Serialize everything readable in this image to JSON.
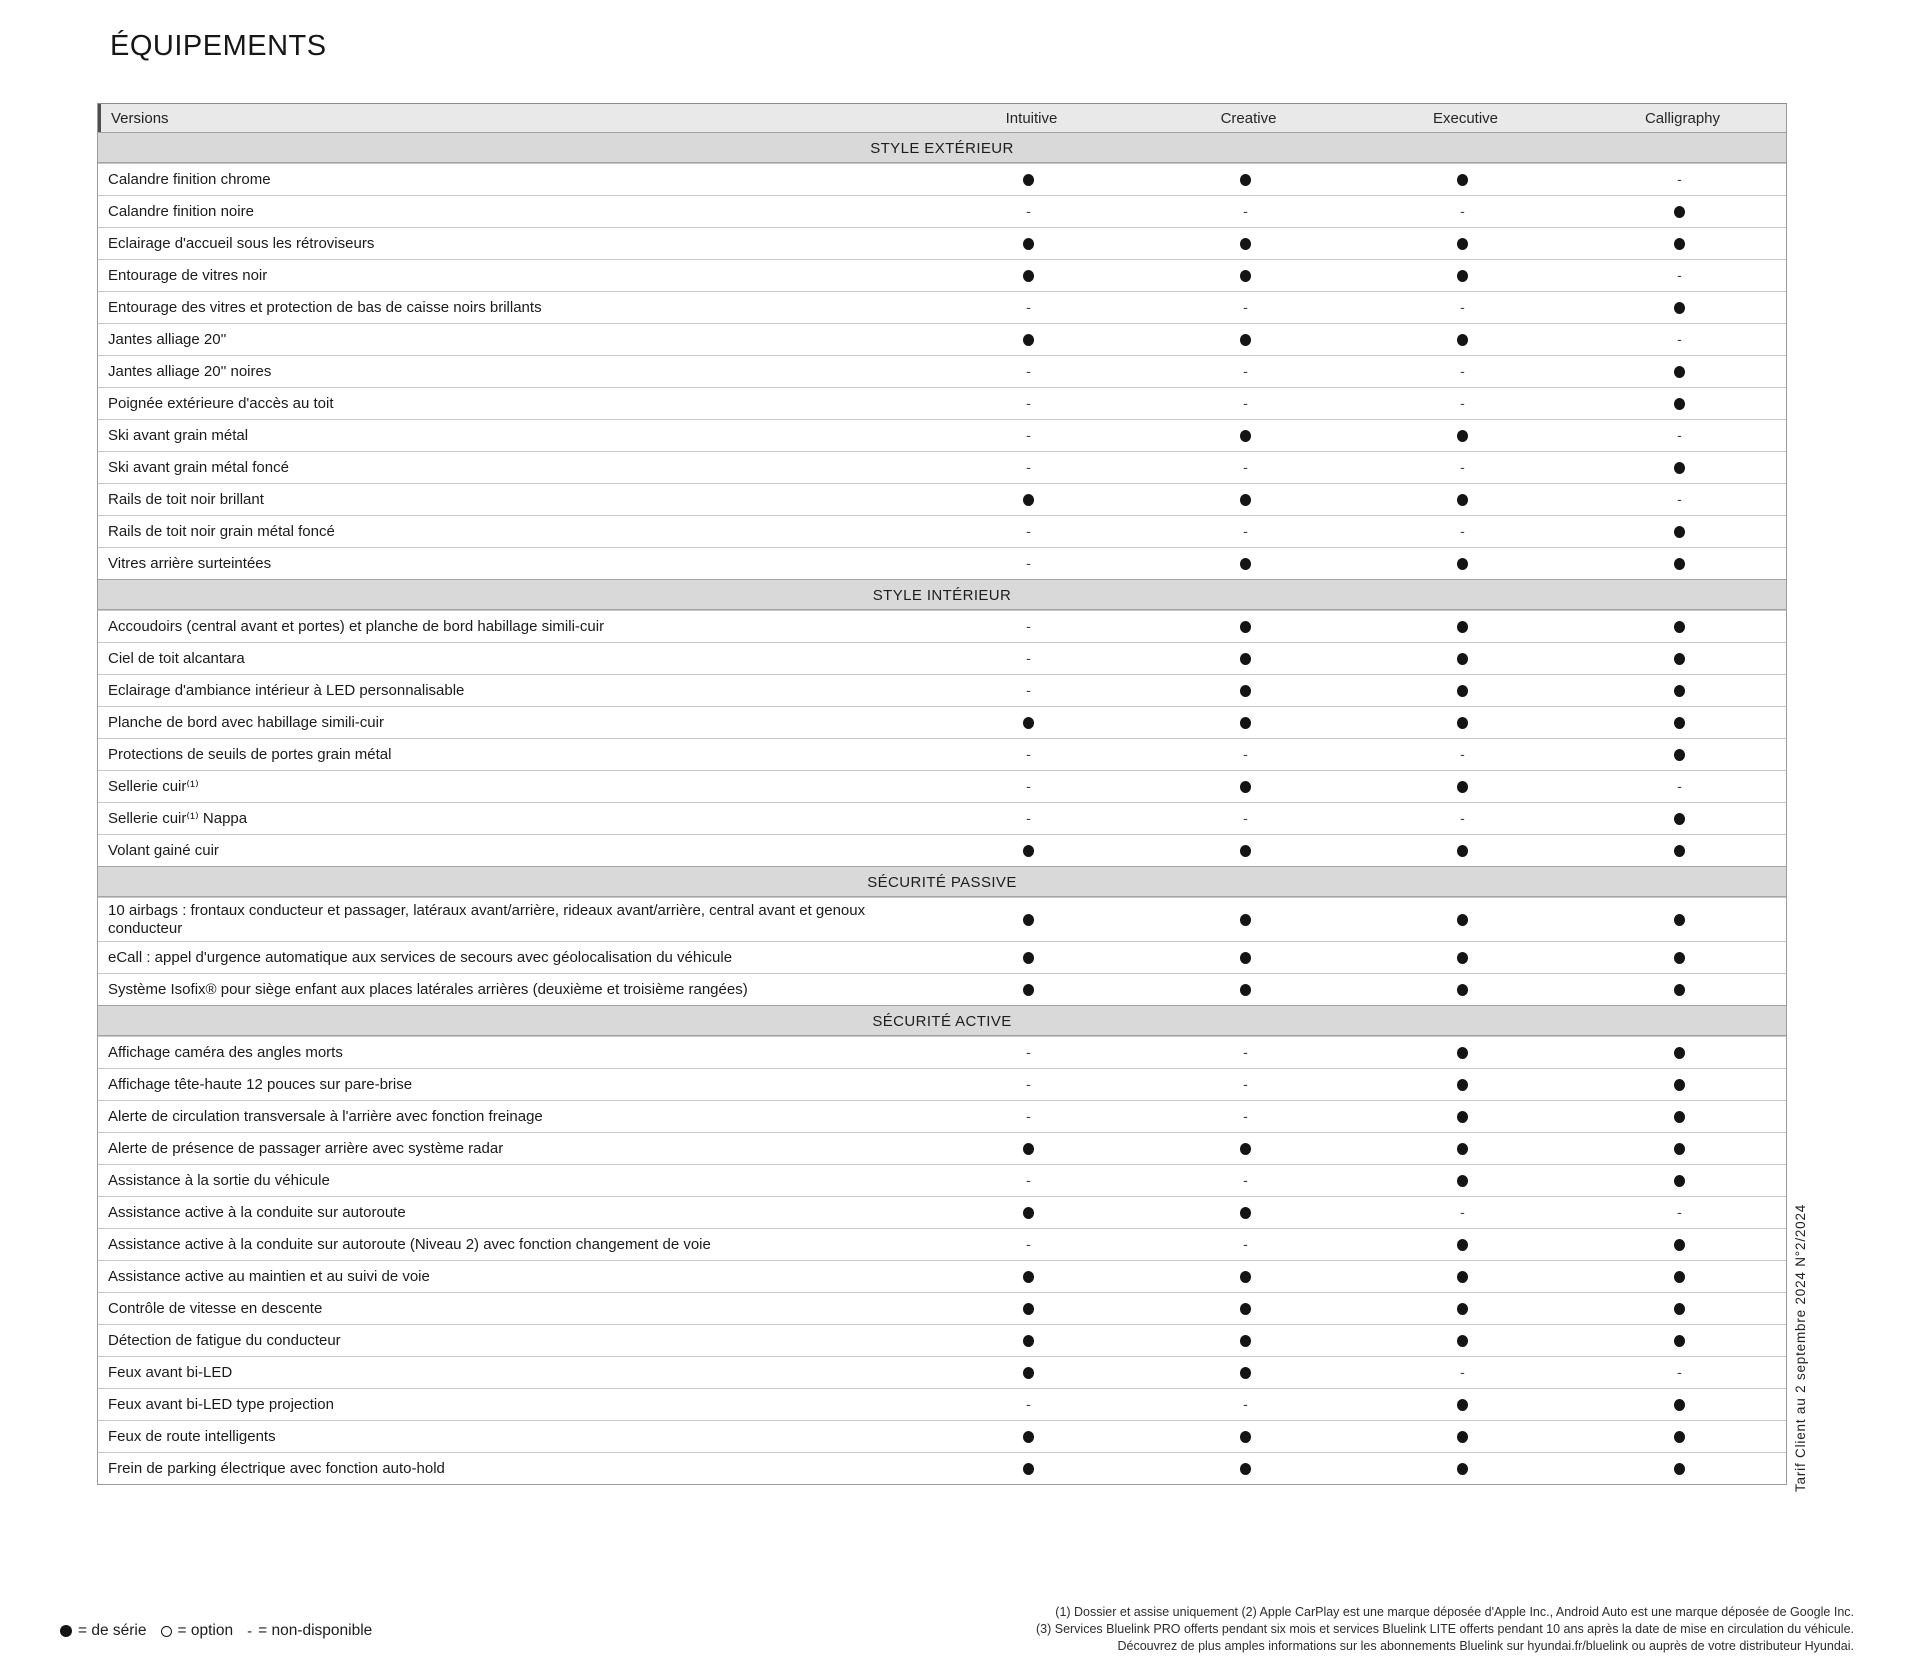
{
  "page": {
    "title": "ÉQUIPEMENTS"
  },
  "table": {
    "header": {
      "label": "Versions",
      "columns": [
        "Intuitive",
        "Creative",
        "Executive",
        "Calligraphy"
      ]
    },
    "legend_dot_meaning": "de série",
    "sections": [
      {
        "title": "STYLE EXTÉRIEUR",
        "rows": [
          {
            "label": "Calandre finition chrome",
            "values": [
              "dot",
              "dot",
              "dot",
              "dash"
            ]
          },
          {
            "label": "Calandre finition noire",
            "values": [
              "dash",
              "dash",
              "dash",
              "dot"
            ]
          },
          {
            "label": "Eclairage d'accueil sous les rétroviseurs",
            "values": [
              "dot",
              "dot",
              "dot",
              "dot"
            ]
          },
          {
            "label": "Entourage de vitres noir",
            "values": [
              "dot",
              "dot",
              "dot",
              "dash"
            ]
          },
          {
            "label": "Entourage des vitres et protection de bas de caisse noirs brillants",
            "values": [
              "dash",
              "dash",
              "dash",
              "dot"
            ]
          },
          {
            "label": "Jantes alliage 20''",
            "values": [
              "dot",
              "dot",
              "dot",
              "dash"
            ]
          },
          {
            "label": "Jantes alliage 20'' noires",
            "values": [
              "dash",
              "dash",
              "dash",
              "dot"
            ]
          },
          {
            "label": "Poignée extérieure d'accès au toit",
            "values": [
              "dash",
              "dash",
              "dash",
              "dot"
            ]
          },
          {
            "label": "Ski avant grain métal",
            "values": [
              "dash",
              "dot",
              "dot",
              "dash"
            ]
          },
          {
            "label": "Ski avant grain métal foncé",
            "values": [
              "dash",
              "dash",
              "dash",
              "dot"
            ]
          },
          {
            "label": "Rails de toit noir brillant",
            "values": [
              "dot",
              "dot",
              "dot",
              "dash"
            ]
          },
          {
            "label": "Rails de toit noir grain métal foncé",
            "values": [
              "dash",
              "dash",
              "dash",
              "dot"
            ]
          },
          {
            "label": "Vitres arrière surteintées",
            "values": [
              "dash",
              "dot",
              "dot",
              "dot"
            ]
          }
        ]
      },
      {
        "title": "STYLE INTÉRIEUR",
        "rows": [
          {
            "label": "Accoudoirs (central avant et portes) et planche de bord habillage simili-cuir",
            "values": [
              "dash",
              "dot",
              "dot",
              "dot"
            ]
          },
          {
            "label": "Ciel de toit alcantara",
            "values": [
              "dash",
              "dot",
              "dot",
              "dot"
            ]
          },
          {
            "label": "Eclairage d'ambiance intérieur à LED personnalisable",
            "values": [
              "dash",
              "dot",
              "dot",
              "dot"
            ]
          },
          {
            "label": "Planche de bord avec habillage simili-cuir",
            "values": [
              "dot",
              "dot",
              "dot",
              "dot"
            ]
          },
          {
            "label": "Protections de seuils de portes grain métal",
            "values": [
              "dash",
              "dash",
              "dash",
              "dot"
            ]
          },
          {
            "label": "Sellerie cuir⁽¹⁾",
            "values": [
              "dash",
              "dot",
              "dot",
              "dash"
            ]
          },
          {
            "label": "Sellerie cuir⁽¹⁾ Nappa",
            "values": [
              "dash",
              "dash",
              "dash",
              "dot"
            ]
          },
          {
            "label": "Volant gainé cuir",
            "values": [
              "dot",
              "dot",
              "dot",
              "dot"
            ]
          }
        ]
      },
      {
        "title": "SÉCURITÉ PASSIVE",
        "rows": [
          {
            "label": "10 airbags : frontaux conducteur et passager, latéraux avant/arrière, rideaux avant/arrière, central avant et genoux conducteur",
            "values": [
              "dot",
              "dot",
              "dot",
              "dot"
            ]
          },
          {
            "label": "eCall : appel d'urgence automatique aux services de secours avec géolocalisation du véhicule",
            "values": [
              "dot",
              "dot",
              "dot",
              "dot"
            ]
          },
          {
            "label": "Système Isofix® pour siège enfant aux places latérales arrières (deuxième et troisième rangées)",
            "values": [
              "dot",
              "dot",
              "dot",
              "dot"
            ]
          }
        ]
      },
      {
        "title": "SÉCURITÉ ACTIVE",
        "rows": [
          {
            "label": "Affichage caméra des angles morts",
            "values": [
              "dash",
              "dash",
              "dot",
              "dot"
            ]
          },
          {
            "label": "Affichage tête-haute 12 pouces sur pare-brise",
            "values": [
              "dash",
              "dash",
              "dot",
              "dot"
            ]
          },
          {
            "label": "Alerte de circulation transversale à l'arrière avec fonction freinage",
            "values": [
              "dash",
              "dash",
              "dot",
              "dot"
            ]
          },
          {
            "label": "Alerte de présence de passager arrière avec système radar",
            "values": [
              "dot",
              "dot",
              "dot",
              "dot"
            ]
          },
          {
            "label": "Assistance à la sortie du véhicule",
            "values": [
              "dash",
              "dash",
              "dot",
              "dot"
            ]
          },
          {
            "label": "Assistance active à la conduite sur autoroute",
            "values": [
              "dot",
              "dot",
              "dash",
              "dash"
            ]
          },
          {
            "label": "Assistance active à la conduite sur autoroute (Niveau 2) avec fonction changement de voie",
            "values": [
              "dash",
              "dash",
              "dot",
              "dot"
            ]
          },
          {
            "label": "Assistance active au maintien et au suivi de voie",
            "values": [
              "dot",
              "dot",
              "dot",
              "dot"
            ]
          },
          {
            "label": "Contrôle de vitesse en descente",
            "values": [
              "dot",
              "dot",
              "dot",
              "dot"
            ]
          },
          {
            "label": "Détection de fatigue du conducteur",
            "values": [
              "dot",
              "dot",
              "dot",
              "dot"
            ]
          },
          {
            "label": "Feux avant bi-LED",
            "values": [
              "dot",
              "dot",
              "dash",
              "dash"
            ]
          },
          {
            "label": "Feux avant bi-LED type projection",
            "values": [
              "dash",
              "dash",
              "dot",
              "dot"
            ]
          },
          {
            "label": "Feux de route intelligents",
            "values": [
              "dot",
              "dot",
              "dot",
              "dot"
            ]
          },
          {
            "label": "Frein de parking électrique avec fonction auto-hold",
            "values": [
              "dot",
              "dot",
              "dot",
              "dot"
            ]
          }
        ]
      }
    ]
  },
  "legend": {
    "items": [
      {
        "symbol": "filled-circle",
        "text": "= de série"
      },
      {
        "symbol": "open-circle",
        "text": "= option"
      },
      {
        "symbol": "-",
        "text": "= non-disponible"
      }
    ]
  },
  "footer": {
    "notes": [
      "(1) Dossier et assise uniquement (2)  Apple CarPlay est une marque déposée d'Apple Inc., Android Auto est une marque déposée de Google Inc.",
      "(3) Services Bluelink PRO offerts pendant six mois et services Bluelink LITE offerts pendant 10 ans après la date de mise en circulation du véhicule.",
      "Découvrez de plus amples informations sur les abonnements Bluelink sur hyundai.fr/bluelink ou auprès de votre distributeur Hyundai."
    ]
  },
  "side_text": "Tarif Client au 2 septembre 2024 N°2/2024",
  "colors": {
    "header_bg": "#e9e9e9",
    "section_bg": "#d9d9d9",
    "dot": "#141414",
    "border": "#c8c8c8"
  }
}
